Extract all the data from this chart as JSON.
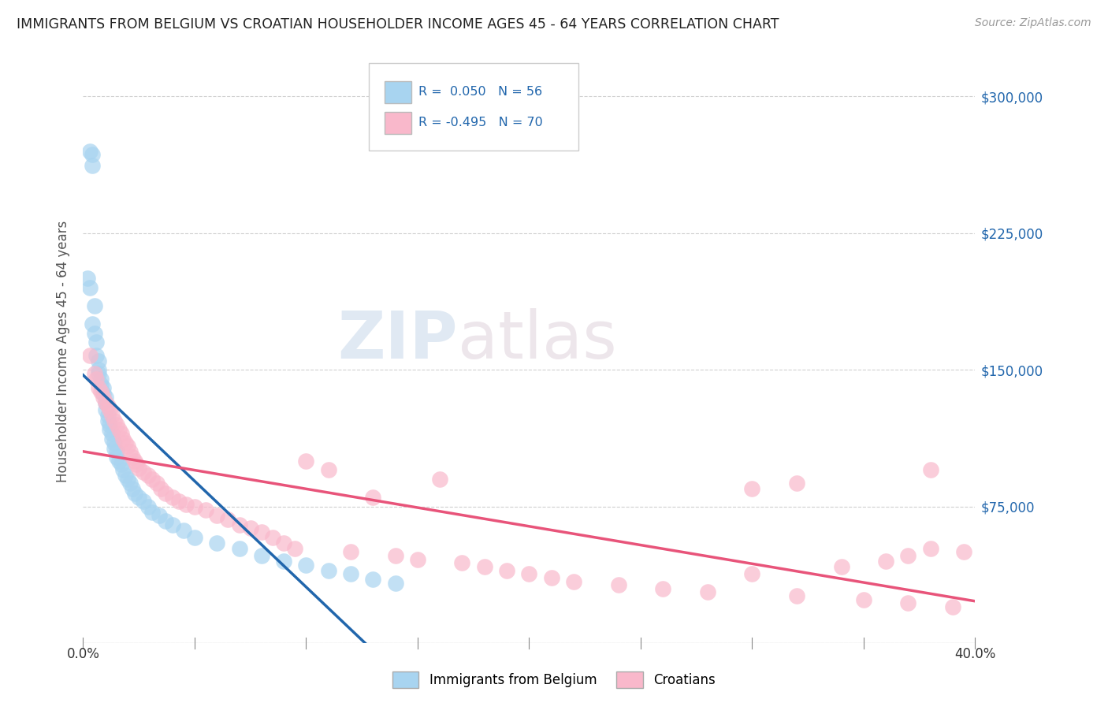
{
  "title": "IMMIGRANTS FROM BELGIUM VS CROATIAN HOUSEHOLDER INCOME AGES 45 - 64 YEARS CORRELATION CHART",
  "source": "Source: ZipAtlas.com",
  "ylabel": "Householder Income Ages 45 - 64 years",
  "xlim": [
    0.0,
    0.4
  ],
  "ylim": [
    0,
    320000
  ],
  "yticks": [
    0,
    75000,
    150000,
    225000,
    300000
  ],
  "yticklabels": [
    "",
    "$75,000",
    "$150,000",
    "$225,000",
    "$300,000"
  ],
  "belgium_R": 0.05,
  "belgium_N": 56,
  "croatia_R": -0.495,
  "croatia_N": 70,
  "belgium_color": "#a8d4f0",
  "croatia_color": "#f9b8cb",
  "belgium_line_color": "#2166ac",
  "croatia_line_color": "#e8547a",
  "belgium_dashed_color": "#b0c8e0",
  "watermark_zip": "ZIP",
  "watermark_atlas": "atlas",
  "background_color": "#ffffff",
  "grid_color": "#d0d0d0",
  "belgium_x": [
    0.003,
    0.004,
    0.004,
    0.005,
    0.005,
    0.006,
    0.006,
    0.007,
    0.007,
    0.007,
    0.008,
    0.008,
    0.009,
    0.009,
    0.01,
    0.01,
    0.01,
    0.011,
    0.011,
    0.012,
    0.012,
    0.013,
    0.013,
    0.014,
    0.014,
    0.015,
    0.015,
    0.016,
    0.017,
    0.018,
    0.019,
    0.02,
    0.021,
    0.022,
    0.023,
    0.025,
    0.027,
    0.029,
    0.031,
    0.034,
    0.037,
    0.04,
    0.045,
    0.05,
    0.06,
    0.07,
    0.08,
    0.09,
    0.1,
    0.11,
    0.12,
    0.13,
    0.14,
    0.002,
    0.003,
    0.004
  ],
  "belgium_y": [
    270000,
    268000,
    262000,
    185000,
    170000,
    165000,
    158000,
    155000,
    150000,
    148000,
    145000,
    142000,
    140000,
    137000,
    135000,
    132000,
    128000,
    125000,
    122000,
    120000,
    117000,
    115000,
    112000,
    110000,
    107000,
    105000,
    102000,
    100000,
    98000,
    95000,
    92000,
    90000,
    88000,
    85000,
    82000,
    80000,
    78000,
    75000,
    72000,
    70000,
    67000,
    65000,
    62000,
    58000,
    55000,
    52000,
    48000,
    45000,
    43000,
    40000,
    38000,
    35000,
    33000,
    200000,
    195000,
    175000
  ],
  "croatia_x": [
    0.003,
    0.005,
    0.006,
    0.007,
    0.008,
    0.009,
    0.01,
    0.011,
    0.012,
    0.013,
    0.014,
    0.015,
    0.016,
    0.017,
    0.018,
    0.019,
    0.02,
    0.021,
    0.022,
    0.023,
    0.024,
    0.025,
    0.027,
    0.029,
    0.031,
    0.033,
    0.035,
    0.037,
    0.04,
    0.043,
    0.046,
    0.05,
    0.055,
    0.06,
    0.065,
    0.07,
    0.075,
    0.08,
    0.085,
    0.09,
    0.095,
    0.1,
    0.11,
    0.12,
    0.13,
    0.14,
    0.15,
    0.16,
    0.17,
    0.18,
    0.19,
    0.2,
    0.21,
    0.22,
    0.24,
    0.26,
    0.28,
    0.3,
    0.32,
    0.35,
    0.37,
    0.38,
    0.39,
    0.38,
    0.37,
    0.36,
    0.34,
    0.32,
    0.3,
    0.395
  ],
  "croatia_y": [
    158000,
    148000,
    145000,
    140000,
    138000,
    135000,
    132000,
    130000,
    128000,
    125000,
    122000,
    120000,
    117000,
    115000,
    112000,
    110000,
    108000,
    105000,
    102000,
    100000,
    98000,
    96000,
    94000,
    92000,
    90000,
    88000,
    85000,
    82000,
    80000,
    78000,
    76000,
    75000,
    73000,
    70000,
    68000,
    65000,
    63000,
    61000,
    58000,
    55000,
    52000,
    100000,
    95000,
    50000,
    80000,
    48000,
    46000,
    90000,
    44000,
    42000,
    40000,
    38000,
    36000,
    34000,
    32000,
    30000,
    28000,
    85000,
    26000,
    24000,
    22000,
    52000,
    20000,
    95000,
    48000,
    45000,
    42000,
    88000,
    38000,
    50000
  ]
}
